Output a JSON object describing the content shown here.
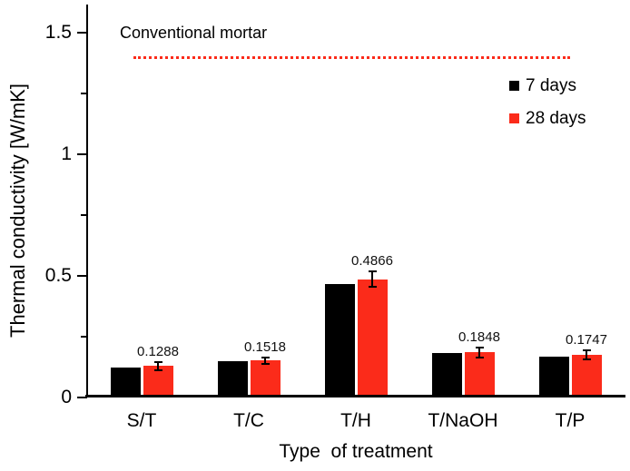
{
  "chart_data": {
    "type": "bar",
    "title": "",
    "xlabel": "Type  of treatment",
    "ylabel": "Thermal conductivity [W/mK]",
    "categories": [
      "S/T",
      "T/C",
      "T/H",
      "T/NaOH",
      "T/P"
    ],
    "series": [
      {
        "name": "7 days",
        "color": "#000000",
        "values": [
          0.124,
          0.148,
          0.465,
          0.181,
          0.167
        ]
      },
      {
        "name": "28 days",
        "color": "#fb2b1a",
        "values": [
          0.1288,
          0.1518,
          0.4866,
          0.1848,
          0.1747
        ],
        "value_labels": [
          "0.1288",
          "0.1518",
          "0.4866",
          "0.1848",
          "0.1747"
        ],
        "errors": [
          0.017,
          0.014,
          0.033,
          0.022,
          0.018
        ]
      }
    ],
    "ylim": [
      0,
      1.55
    ],
    "yticks": {
      "major": [
        {
          "value": 0,
          "label": "0"
        },
        {
          "value": 0.5,
          "label": "0.5"
        },
        {
          "value": 1,
          "label": "1"
        },
        {
          "value": 1.5,
          "label": "1.5"
        }
      ],
      "minor": [
        0.25,
        0.75,
        1.25
      ]
    },
    "reference_line": {
      "label": "Conventional mortar",
      "value": 1.4,
      "style": "dotted",
      "color": "#fb2b1a"
    },
    "legend": {
      "position": "top-right"
    },
    "grid": false
  }
}
